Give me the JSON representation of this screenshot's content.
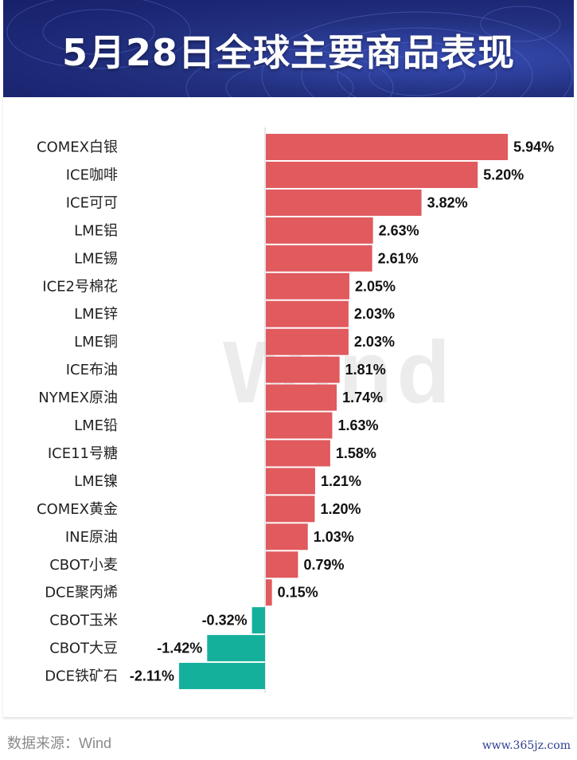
{
  "header": {
    "title": "5月28日全球主要商品表现"
  },
  "watermark": "Wind",
  "footer": {
    "source": "数据来源：Wind",
    "site": "www.365jz.com"
  },
  "colors": {
    "positive": "#e05a5e",
    "negative": "#15b09c"
  },
  "chart_data": {
    "type": "bar",
    "orientation": "horizontal",
    "title": "5月28日全球主要商品表现",
    "xlabel": "",
    "ylabel": "",
    "unit": "%",
    "categories": [
      "COMEX白银",
      "ICE咖啡",
      "ICE可可",
      "LME铝",
      "LME锡",
      "ICE2号棉花",
      "LME锌",
      "LME铜",
      "ICE布油",
      "NYMEX原油",
      "LME铅",
      "ICE11号糖",
      "LME镍",
      "COMEX黄金",
      "INE原油",
      "CBOT小麦",
      "DCE聚丙烯",
      "CBOT玉米",
      "CBOT大豆",
      "DCE铁矿石"
    ],
    "values": [
      5.94,
      5.2,
      3.82,
      2.63,
      2.61,
      2.05,
      2.03,
      2.03,
      1.81,
      1.74,
      1.63,
      1.58,
      1.21,
      1.2,
      1.03,
      0.79,
      0.15,
      -0.32,
      -1.42,
      -2.11
    ],
    "labels": [
      "5.94%",
      "5.20%",
      "3.82%",
      "2.63%",
      "2.61%",
      "2.05%",
      "2.03%",
      "2.03%",
      "1.81%",
      "1.74%",
      "1.63%",
      "1.58%",
      "1.21%",
      "1.20%",
      "1.03%",
      "0.79%",
      "0.15%",
      "-0.32%",
      "-1.42%",
      "-2.11%"
    ]
  }
}
